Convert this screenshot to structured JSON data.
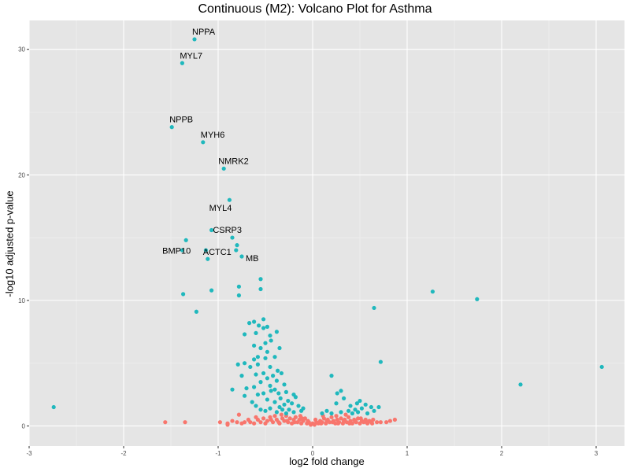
{
  "chart_data": {
    "type": "scatter",
    "title": "Continuous (M2): Volcano Plot for Asthma",
    "xlabel": "log2 fold change",
    "ylabel": "-log10 adjusted p-value",
    "xlim": [
      -3,
      3.3
    ],
    "ylim": [
      -1.6,
      32.3
    ],
    "x_ticks": [
      -3,
      -2,
      -1,
      0,
      1,
      2,
      3
    ],
    "y_ticks": [
      0,
      10,
      20,
      30
    ],
    "grid": true,
    "legend": "none",
    "colors": {
      "significant": "#20B8BD",
      "not_significant": "#F8766D",
      "panel": "#E5E5E5",
      "grid": "#FFFFFF"
    },
    "labeled_points": [
      {
        "label": "NPPA",
        "x": -1.25,
        "y": 30.8
      },
      {
        "label": "MYL7",
        "x": -1.38,
        "y": 28.9
      },
      {
        "label": "NPPB",
        "x": -1.49,
        "y": 23.8
      },
      {
        "label": "MYH6",
        "x": -1.16,
        "y": 22.6
      },
      {
        "label": "NMRK2",
        "x": -0.94,
        "y": 20.5
      },
      {
        "label": "MYL4",
        "x": -0.88,
        "y": 18.0
      },
      {
        "label": "CSRP3",
        "x": -0.85,
        "y": 15.0
      },
      {
        "label": "ACTC1",
        "x": -0.81,
        "y": 14.0
      },
      {
        "label": "BMP10",
        "x": -1.34,
        "y": 14.8
      },
      {
        "label": "MB",
        "x": -0.75,
        "y": 13.5
      }
    ],
    "series": [
      {
        "name": "significant",
        "points": [
          [
            -1.07,
            15.6
          ],
          [
            -1.38,
            14.0
          ],
          [
            -1.13,
            14.0
          ],
          [
            -1.11,
            13.3
          ],
          [
            -0.8,
            14.4
          ],
          [
            -0.55,
            11.7
          ],
          [
            -0.78,
            11.1
          ],
          [
            -1.07,
            10.8
          ],
          [
            -0.55,
            10.9
          ],
          [
            -0.78,
            10.4
          ],
          [
            -1.37,
            10.5
          ],
          [
            -1.23,
            9.1
          ],
          [
            -0.57,
            8.0
          ],
          [
            -0.52,
            8.5
          ],
          [
            -0.62,
            8.3
          ],
          [
            -0.67,
            8.2
          ],
          [
            -0.48,
            7.9
          ],
          [
            -0.6,
            7.4
          ],
          [
            -0.52,
            7.8
          ],
          [
            -0.45,
            7.2
          ],
          [
            -0.38,
            7.5
          ],
          [
            -0.72,
            7.3
          ],
          [
            -0.5,
            6.6
          ],
          [
            -0.44,
            6.8
          ],
          [
            -0.35,
            6.2
          ],
          [
            -0.62,
            6.4
          ],
          [
            -0.55,
            6.2
          ],
          [
            -0.48,
            5.9
          ],
          [
            -0.4,
            5.5
          ],
          [
            -0.58,
            5.5
          ],
          [
            -0.5,
            5.4
          ],
          [
            -0.62,
            5.3
          ],
          [
            -0.72,
            5.0
          ],
          [
            -0.66,
            4.7
          ],
          [
            -0.58,
            4.9
          ],
          [
            -0.45,
            4.7
          ],
          [
            -0.37,
            4.4
          ],
          [
            -0.52,
            4.2
          ],
          [
            -0.6,
            4.1
          ],
          [
            -0.42,
            4.0
          ],
          [
            -0.33,
            4.2
          ],
          [
            -0.75,
            4.0
          ],
          [
            -0.79,
            4.9
          ],
          [
            -0.48,
            3.8
          ],
          [
            -0.38,
            3.6
          ],
          [
            -0.55,
            3.5
          ],
          [
            -0.45,
            3.2
          ],
          [
            -0.3,
            3.3
          ],
          [
            -0.62,
            3.1
          ],
          [
            -0.4,
            2.9
          ],
          [
            -0.85,
            2.9
          ],
          [
            -0.7,
            3.0
          ],
          [
            -0.52,
            2.6
          ],
          [
            -0.44,
            2.8
          ],
          [
            -0.36,
            2.6
          ],
          [
            -0.28,
            2.7
          ],
          [
            -0.2,
            2.5
          ],
          [
            -0.58,
            2.5
          ],
          [
            -0.34,
            2.2
          ],
          [
            -0.26,
            2.0
          ],
          [
            -0.18,
            2.3
          ],
          [
            -0.48,
            2.1
          ],
          [
            -0.4,
            1.9
          ],
          [
            -0.3,
            1.7
          ],
          [
            -0.22,
            1.8
          ],
          [
            -0.64,
            1.9
          ],
          [
            -0.72,
            2.4
          ],
          [
            -0.15,
            1.6
          ],
          [
            -0.1,
            1.4
          ],
          [
            -0.35,
            1.5
          ],
          [
            -0.45,
            1.4
          ],
          [
            -0.55,
            1.3
          ],
          [
            -0.25,
            1.3
          ],
          [
            -0.2,
            1.1
          ],
          [
            -0.12,
            1.2
          ],
          [
            -0.38,
            1.1
          ],
          [
            -0.28,
            1.0
          ],
          [
            -0.5,
            1.2
          ],
          [
            -0.6,
            1.6
          ],
          [
            -0.32,
            1.3
          ],
          [
            0.2,
            4.0
          ],
          [
            0.3,
            2.8
          ],
          [
            0.26,
            2.6
          ],
          [
            0.33,
            2.2
          ],
          [
            0.25,
            1.8
          ],
          [
            0.4,
            1.6
          ],
          [
            0.45,
            1.3
          ],
          [
            0.52,
            1.4
          ],
          [
            0.56,
            1.7
          ],
          [
            0.62,
            1.5
          ],
          [
            0.38,
            1.2
          ],
          [
            0.3,
            1.1
          ],
          [
            0.2,
            1.0
          ],
          [
            0.42,
            1.0
          ],
          [
            0.48,
            1.1
          ],
          [
            0.58,
            1.0
          ],
          [
            0.65,
            1.2
          ],
          [
            0.7,
            1.5
          ],
          [
            0.15,
            1.2
          ],
          [
            0.1,
            1.0
          ],
          [
            0.5,
            2.0
          ],
          [
            0.47,
            1.8
          ],
          [
            0.72,
            5.1
          ],
          [
            0.65,
            9.4
          ],
          [
            1.27,
            10.7
          ],
          [
            1.74,
            10.1
          ],
          [
            2.2,
            3.3
          ],
          [
            3.06,
            4.7
          ],
          [
            -2.74,
            1.5
          ]
        ]
      },
      {
        "name": "not_significant",
        "points": [
          [
            -1.56,
            0.3
          ],
          [
            -1.35,
            0.3
          ],
          [
            -0.98,
            0.3
          ],
          [
            -0.9,
            0.2
          ],
          [
            -0.8,
            0.3
          ],
          [
            -0.78,
            0.9
          ],
          [
            -0.72,
            0.3
          ],
          [
            -0.66,
            0.3
          ],
          [
            -0.62,
            0.2
          ],
          [
            -0.58,
            0.5
          ],
          [
            -0.55,
            0.3
          ],
          [
            -0.52,
            0.6
          ],
          [
            -0.48,
            0.4
          ],
          [
            -0.45,
            0.7
          ],
          [
            -0.42,
            0.3
          ],
          [
            -0.4,
            0.8
          ],
          [
            -0.38,
            0.5
          ],
          [
            -0.35,
            0.2
          ],
          [
            -0.32,
            0.6
          ],
          [
            -0.3,
            0.4
          ],
          [
            -0.28,
            0.8
          ],
          [
            -0.26,
            0.3
          ],
          [
            -0.24,
            0.6
          ],
          [
            -0.22,
            0.2
          ],
          [
            -0.2,
            0.5
          ],
          [
            -0.18,
            0.7
          ],
          [
            -0.16,
            0.3
          ],
          [
            -0.14,
            0.5
          ],
          [
            -0.12,
            0.2
          ],
          [
            -0.1,
            0.4
          ],
          [
            -0.08,
            0.6
          ],
          [
            -0.06,
            0.2
          ],
          [
            -0.04,
            0.3
          ],
          [
            -0.02,
            0.1
          ],
          [
            0.0,
            0.2
          ],
          [
            0.02,
            0.1
          ],
          [
            0.04,
            0.3
          ],
          [
            0.06,
            0.2
          ],
          [
            0.08,
            0.4
          ],
          [
            0.1,
            0.3
          ],
          [
            0.12,
            0.6
          ],
          [
            0.14,
            0.2
          ],
          [
            0.16,
            0.5
          ],
          [
            0.18,
            0.3
          ],
          [
            0.2,
            0.7
          ],
          [
            0.22,
            0.4
          ],
          [
            0.24,
            0.2
          ],
          [
            0.26,
            0.5
          ],
          [
            0.28,
            0.3
          ],
          [
            0.3,
            0.6
          ],
          [
            0.32,
            0.2
          ],
          [
            0.34,
            0.5
          ],
          [
            0.36,
            0.3
          ],
          [
            0.38,
            0.7
          ],
          [
            0.4,
            0.4
          ],
          [
            0.42,
            0.2
          ],
          [
            0.44,
            0.5
          ],
          [
            0.46,
            0.3
          ],
          [
            0.48,
            0.6
          ],
          [
            0.5,
            0.2
          ],
          [
            0.52,
            0.4
          ],
          [
            0.54,
            0.3
          ],
          [
            0.56,
            0.5
          ],
          [
            0.58,
            0.2
          ],
          [
            0.6,
            0.4
          ],
          [
            0.62,
            0.3
          ],
          [
            0.64,
            0.5
          ],
          [
            0.68,
            0.3
          ],
          [
            0.72,
            0.3
          ],
          [
            0.78,
            0.3
          ],
          [
            0.82,
            0.4
          ],
          [
            0.87,
            0.5
          ],
          [
            -0.85,
            0.4
          ],
          [
            -0.75,
            0.2
          ],
          [
            -0.68,
            0.5
          ],
          [
            -0.6,
            0.7
          ],
          [
            -0.5,
            0.2
          ],
          [
            -0.44,
            0.5
          ],
          [
            -0.36,
            0.3
          ],
          [
            -0.27,
            0.4
          ],
          [
            -0.19,
            0.3
          ],
          [
            -0.11,
            0.6
          ],
          [
            -0.05,
            0.4
          ],
          [
            0.03,
            0.5
          ],
          [
            0.09,
            0.2
          ],
          [
            0.15,
            0.4
          ],
          [
            0.21,
            0.3
          ],
          [
            0.27,
            0.2
          ],
          [
            0.33,
            0.4
          ],
          [
            0.39,
            0.2
          ],
          [
            0.45,
            0.4
          ],
          [
            0.51,
            0.6
          ],
          [
            0.57,
            0.3
          ],
          [
            0.63,
            0.2
          ],
          [
            0.11,
            0.8
          ],
          [
            -0.13,
            0.8
          ],
          [
            -0.33,
            0.9
          ],
          [
            0.25,
            0.8
          ],
          [
            0.35,
            0.9
          ],
          [
            -0.9,
            0.1
          ]
        ]
      }
    ]
  }
}
